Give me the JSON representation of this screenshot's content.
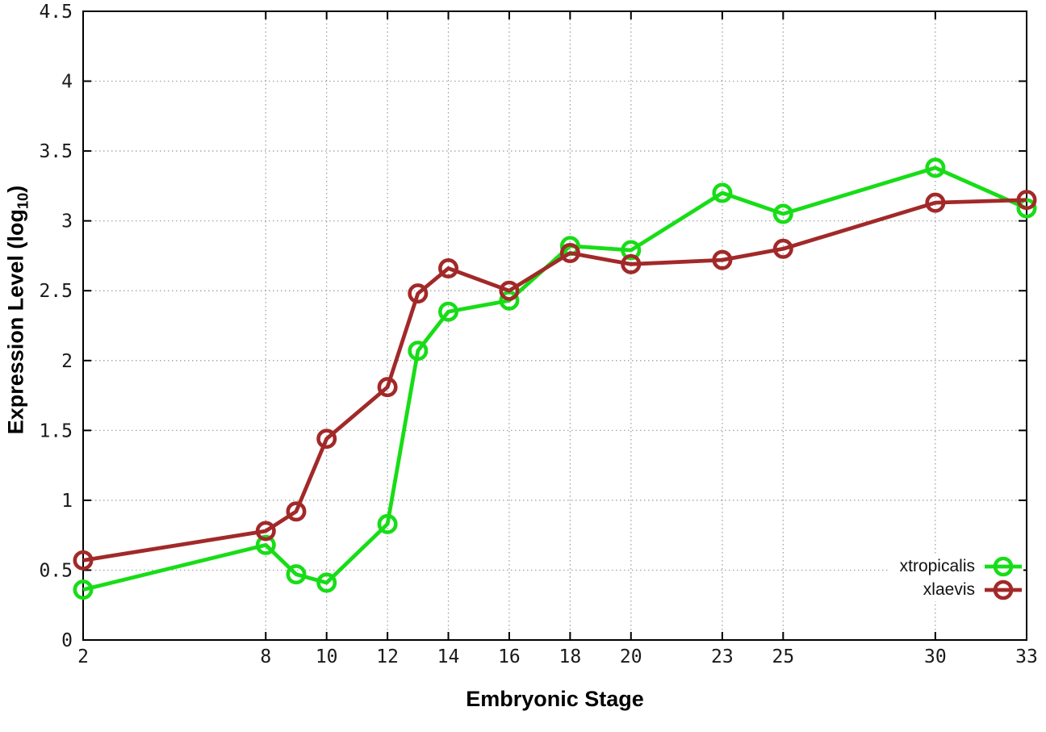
{
  "figure": {
    "x_axis_title": "Embryonic Stage",
    "y_axis_title_prefix": "Expression Level (log",
    "y_axis_title_sub": "10",
    "y_axis_title_suffix": ")",
    "background_color": "#ffffff",
    "grid_color": "#9a9a9a",
    "axis_color": "#000000"
  },
  "chart_data": {
    "type": "line",
    "title": "",
    "xlabel": "Embryonic Stage",
    "ylabel": "Expression Level (log10)",
    "xlim": [
      2,
      33
    ],
    "ylim": [
      0,
      4.5
    ],
    "x_ticks": [
      2,
      8,
      10,
      12,
      14,
      16,
      18,
      20,
      23,
      25,
      30,
      33
    ],
    "y_ticks": [
      0,
      0.5,
      1,
      1.5,
      2,
      2.5,
      3,
      3.5,
      4,
      4.5
    ],
    "grid": true,
    "legend_position": "bottom-right",
    "marker": "open-circle",
    "x": [
      2,
      8,
      9,
      10,
      12,
      13,
      14,
      16,
      18,
      20,
      23,
      25,
      30,
      33
    ],
    "series": [
      {
        "name": "xtropicalis",
        "color": "#17dd17",
        "values": [
          0.36,
          0.68,
          0.47,
          0.41,
          0.83,
          2.07,
          2.35,
          2.43,
          2.82,
          2.79,
          3.2,
          3.05,
          3.38,
          3.09
        ]
      },
      {
        "name": "xlaevis",
        "color": "#a22929",
        "values": [
          0.57,
          0.78,
          0.92,
          1.44,
          1.81,
          2.48,
          2.66,
          2.5,
          2.77,
          2.69,
          2.72,
          2.8,
          3.13,
          3.15
        ]
      }
    ]
  }
}
